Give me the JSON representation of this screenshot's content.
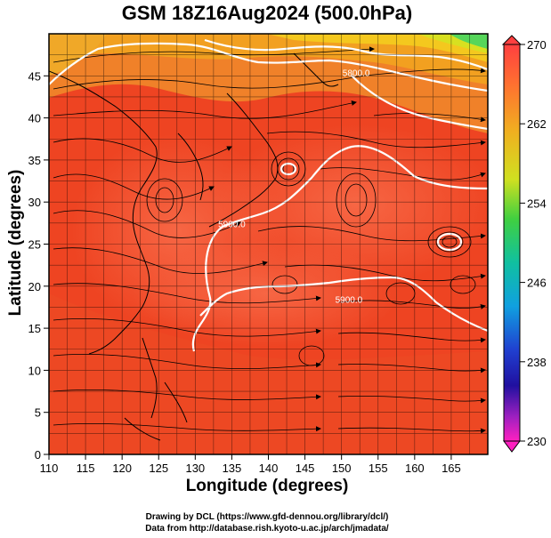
{
  "title": "GSM 18Z16Aug2024 (500.0hPa)",
  "xlabel": "Longitude (degrees)",
  "ylabel": "Latitude  (degrees)",
  "credits": [
    "Drawing by DCL (https://www.gfd-dennou.org/library/dcl/)",
    "Data from http://database.rish.kyoto-u.ac.jp/arch/jmadata/"
  ],
  "chart_data": {
    "type": "heatmap",
    "x_ticks": [
      110,
      115,
      120,
      125,
      130,
      135,
      140,
      145,
      150,
      155,
      160,
      165
    ],
    "y_ticks": [
      0,
      5,
      10,
      15,
      20,
      25,
      30,
      35,
      40,
      45
    ],
    "xlim": [
      110,
      170
    ],
    "ylim": [
      0,
      50
    ],
    "colorbar": {
      "ticks": [
        270,
        262,
        254,
        246,
        238,
        230
      ],
      "range": [
        230,
        270
      ]
    },
    "contour_labels": [
      "5800.0",
      "5900.0",
      "5900.0"
    ],
    "contour_label_positions": [
      {
        "lon": 152,
        "lat": 45
      },
      {
        "lon": 135,
        "lat": 27
      },
      {
        "lon": 151,
        "lat": 18
      }
    ]
  },
  "colors": {
    "field_main": "#ee4422",
    "field_warm_core": "#f45a3e",
    "field_north": "#f29a1c",
    "field_yellow": "#f4d21c",
    "field_green": "#56d65a",
    "contour": "#ffffff",
    "frame": "#000000"
  }
}
